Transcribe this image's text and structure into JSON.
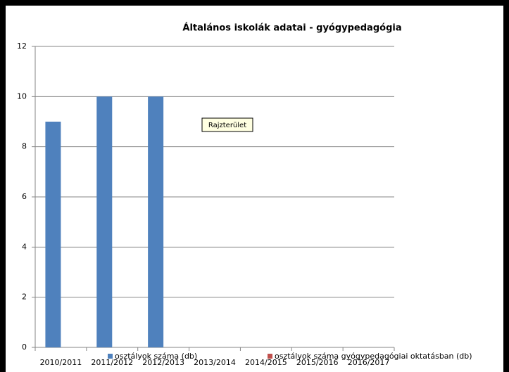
{
  "chart_data": {
    "type": "bar",
    "title": "Általános iskolák adatai - gyógypedagógia",
    "annotation": "Rajzterület",
    "categories": [
      "2010/2011",
      "2011/2012",
      "2012/2013",
      "2013/2014",
      "2014/2015",
      "2015/2016",
      "2016/2017"
    ],
    "series": [
      {
        "name": "osztályok száma (db)",
        "color": "#4f81bd",
        "values": [
          9,
          10,
          10,
          null,
          null,
          null,
          null
        ]
      },
      {
        "name": "osztályok száma gyógypedagógiai oktatásban (db)",
        "color": "#c0504d",
        "values": [
          null,
          null,
          null,
          null,
          null,
          null,
          null
        ]
      }
    ],
    "ylim": [
      0,
      12
    ],
    "yticks": [
      0,
      2,
      4,
      6,
      8,
      10,
      12
    ],
    "grid": true
  }
}
